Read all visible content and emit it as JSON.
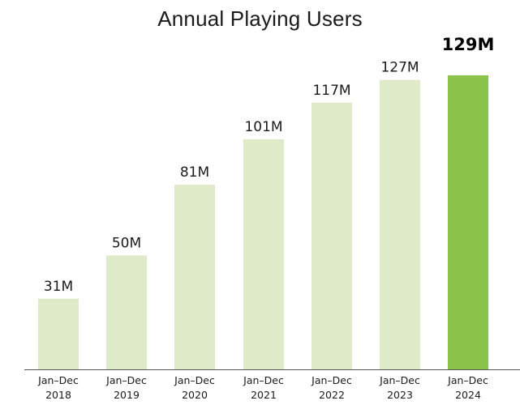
{
  "chart_data": {
    "type": "bar",
    "title": "Annual Playing Users",
    "categories": [
      [
        "Jan–Dec",
        "2018"
      ],
      [
        "Jan–Dec",
        "2019"
      ],
      [
        "Jan–Dec",
        "2020"
      ],
      [
        "Jan–Dec",
        "2021"
      ],
      [
        "Jan–Dec",
        "2022"
      ],
      [
        "Jan–Dec",
        "2023"
      ],
      [
        "Jan–Dec",
        "2024"
      ]
    ],
    "values": [
      31,
      50,
      81,
      101,
      117,
      127,
      129
    ],
    "value_labels": [
      "31M",
      "50M",
      "81M",
      "101M",
      "117M",
      "127M",
      "129M"
    ],
    "highlight_index": 6,
    "xlabel": "",
    "ylabel": "",
    "ylim": [
      0,
      129
    ],
    "grid": false,
    "colors": {
      "bar": "#dfeac8",
      "highlight_bar": "#8bc34a",
      "axis": "#555555"
    }
  }
}
